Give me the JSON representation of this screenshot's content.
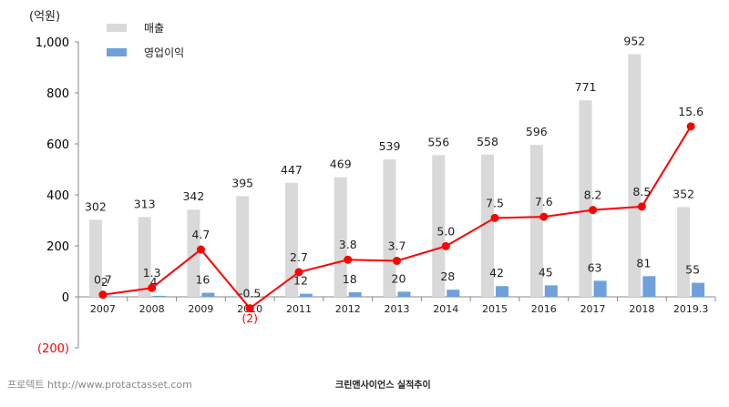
{
  "chart_data": {
    "type": "bar",
    "unit_label": "(억원)",
    "categories": [
      "2007",
      "2008",
      "2009",
      "2010",
      "2011",
      "2012",
      "2013",
      "2014",
      "2015",
      "2016",
      "2017",
      "2018",
      "2019.3"
    ],
    "series": [
      {
        "name": "매출",
        "type": "bar",
        "color": "#d9d9d9",
        "values": [
          302,
          313,
          342,
          395,
          447,
          469,
          539,
          556,
          558,
          596,
          771,
          952,
          352
        ]
      },
      {
        "name": "영업이익",
        "type": "bar",
        "color": "#6fa0db",
        "values": [
          2,
          4,
          16,
          -2,
          12,
          18,
          20,
          28,
          42,
          45,
          63,
          81,
          55
        ],
        "labels": [
          "2",
          "4",
          "16",
          "(2)",
          "12",
          "18",
          "20",
          "28",
          "42",
          "45",
          "63",
          "81",
          "55"
        ]
      },
      {
        "type": "line",
        "color": "#ff0000",
        "values": [
          0.7,
          1.3,
          4.7,
          -0.5,
          2.7,
          3.8,
          3.7,
          5.0,
          7.5,
          7.6,
          8.2,
          8.5,
          15.6
        ],
        "labels": [
          "0.7",
          "1.3",
          "4.7",
          "-0.5",
          "2.7",
          "3.8",
          "3.7",
          "5.0",
          "7.5",
          "7.6",
          "8.2",
          "8.5",
          "15.6"
        ]
      }
    ],
    "ylim": [
      -200,
      1000
    ],
    "yticks": [
      {
        "value": 1000,
        "label": "1,000",
        "color": "#000000"
      },
      {
        "value": 800,
        "label": "800",
        "color": "#000000"
      },
      {
        "value": 600,
        "label": "600",
        "color": "#000000"
      },
      {
        "value": 400,
        "label": "400",
        "color": "#000000"
      },
      {
        "value": 200,
        "label": "200",
        "color": "#000000"
      },
      {
        "value": 0,
        "label": "0",
        "color": "#000000"
      },
      {
        "value": -200,
        "label": "(200)",
        "color": "#ff0000"
      }
    ],
    "line_ylim": [
      -4,
      23
    ],
    "grid": false,
    "legend": "top-left"
  },
  "footer": {
    "source": "프로텍트 http://www.protactasset.com",
    "caption": "크린앤사이언스 실적추이"
  }
}
